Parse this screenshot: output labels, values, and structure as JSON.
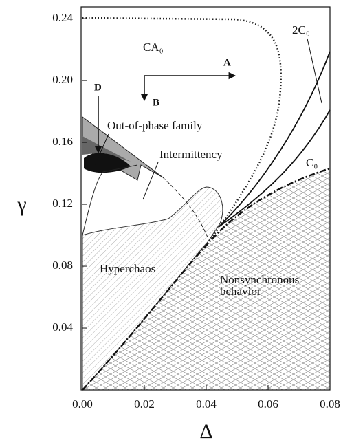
{
  "chart_data": {
    "type": "phase-diagram",
    "xlabel": "Δ",
    "ylabel": "γ",
    "xlim": [
      0,
      0.08
    ],
    "ylim": [
      0,
      0.2476
    ],
    "xticks": [
      {
        "value": 0,
        "label": "0.00"
      },
      0.02,
      0.04,
      0.06,
      0.08
    ],
    "yticks": [
      0.04,
      0.08,
      0.12,
      0.16,
      {
        "value": 0.2,
        "label": "0.20"
      },
      0.24
    ],
    "annotations": [
      "CA₀",
      "A",
      "B",
      "D",
      "Out-of-phase family",
      "Intermittency",
      "Hyperchaos",
      "Nonsynchronous",
      "behavior",
      "2C₀",
      "C₀"
    ]
  }
}
